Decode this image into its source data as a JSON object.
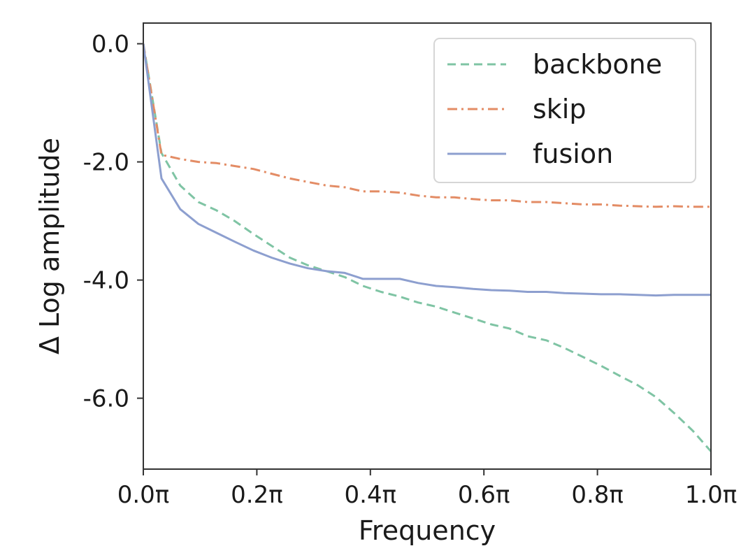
{
  "chart_data": {
    "type": "line",
    "title": "",
    "xlabel": "Frequency",
    "ylabel": "Δ Log amplitude",
    "xlim": [
      0.0,
      1.0
    ],
    "ylim": [
      -7.2,
      0.35
    ],
    "grid": false,
    "legend_position": "top-right",
    "x_ticks": [
      {
        "value": 0.0,
        "label": "0.0π"
      },
      {
        "value": 0.2,
        "label": "0.2π"
      },
      {
        "value": 0.4,
        "label": "0.4π"
      },
      {
        "value": 0.6,
        "label": "0.6π"
      },
      {
        "value": 0.8,
        "label": "0.8π"
      },
      {
        "value": 1.0,
        "label": "1.0π"
      }
    ],
    "y_ticks": [
      {
        "value": 0.0,
        "label": "0.0"
      },
      {
        "value": -2.0,
        "label": "-2.0"
      },
      {
        "value": -4.0,
        "label": "-4.0"
      },
      {
        "value": -6.0,
        "label": "-6.0"
      }
    ],
    "x": [
      0.0,
      0.032,
      0.065,
      0.097,
      0.129,
      0.161,
      0.194,
      0.226,
      0.258,
      0.29,
      0.323,
      0.355,
      0.387,
      0.419,
      0.452,
      0.484,
      0.516,
      0.548,
      0.581,
      0.613,
      0.645,
      0.677,
      0.71,
      0.742,
      0.774,
      0.806,
      0.839,
      0.871,
      0.903,
      0.935,
      0.968,
      1.0
    ],
    "series": [
      {
        "name": "backbone",
        "color": "#7fc4a4",
        "dash": "dashed",
        "values": [
          0.0,
          -1.85,
          -2.4,
          -2.68,
          -2.82,
          -3.0,
          -3.22,
          -3.42,
          -3.62,
          -3.75,
          -3.85,
          -3.95,
          -4.1,
          -4.2,
          -4.28,
          -4.38,
          -4.45,
          -4.55,
          -4.65,
          -4.75,
          -4.82,
          -4.95,
          -5.02,
          -5.15,
          -5.3,
          -5.45,
          -5.62,
          -5.78,
          -5.98,
          -6.25,
          -6.55,
          -6.9
        ]
      },
      {
        "name": "skip",
        "color": "#e38c65",
        "dash": "dashdot",
        "values": [
          0.0,
          -1.88,
          -1.95,
          -2.0,
          -2.02,
          -2.07,
          -2.12,
          -2.2,
          -2.28,
          -2.34,
          -2.4,
          -2.43,
          -2.5,
          -2.5,
          -2.52,
          -2.57,
          -2.6,
          -2.6,
          -2.63,
          -2.65,
          -2.65,
          -2.68,
          -2.68,
          -2.7,
          -2.72,
          -2.72,
          -2.74,
          -2.75,
          -2.76,
          -2.75,
          -2.76,
          -2.76
        ]
      },
      {
        "name": "fusion",
        "color": "#8d9fcf",
        "dash": "solid",
        "values": [
          0.0,
          -2.28,
          -2.8,
          -3.05,
          -3.2,
          -3.35,
          -3.5,
          -3.62,
          -3.72,
          -3.8,
          -3.85,
          -3.88,
          -3.98,
          -3.98,
          -3.98,
          -4.05,
          -4.1,
          -4.12,
          -4.15,
          -4.17,
          -4.18,
          -4.2,
          -4.2,
          -4.22,
          -4.23,
          -4.24,
          -4.24,
          -4.25,
          -4.26,
          -4.25,
          -4.25,
          -4.25
        ]
      }
    ]
  }
}
